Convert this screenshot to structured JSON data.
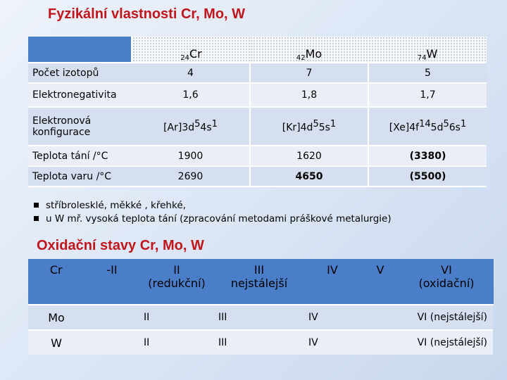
{
  "title": "Fyzikální vlastnosti Cr, Mo, W",
  "elements": [
    {
      "z": "24",
      "sym": "Cr"
    },
    {
      "z": "42",
      "sym": "Mo"
    },
    {
      "z": "74",
      "sym": "W"
    }
  ],
  "rows": {
    "izotopy": {
      "label": "Počet izotopů",
      "v": [
        "4",
        "7",
        "5"
      ]
    },
    "elneg": {
      "label": "Elektronegativita",
      "v": [
        "1,6",
        "1,8",
        "1,7"
      ]
    },
    "konf": {
      "label_1": "Elektronová",
      "label_2": "konfigurace",
      "cr": {
        "core": "[Ar]3d",
        "e1": "5",
        "mid": "4s",
        "e2": "1"
      },
      "mo": {
        "core": "[Kr]4d",
        "e1": "5",
        "mid": "5s",
        "e2": "1"
      },
      "w": {
        "core": "[Xe]4f",
        "e1": "14",
        "mid": "5d",
        "e2": "5",
        "mid2": "6s",
        "e3": "1"
      }
    },
    "tani": {
      "label": "Teplota tání  /°C",
      "v": [
        "1900",
        "1620",
        "(3380)"
      ]
    },
    "varu": {
      "label": "Teplota varu /°C",
      "v": [
        "2690",
        "4650",
        "(5500)"
      ]
    }
  },
  "bullets": [
    "stříbrolesklé, měkké , křehké,",
    "u W mř.  vysoká teplota tání (zpracování metodami práškové metalurgie)"
  ],
  "subtitle": "Oxidační stavy Cr, Mo, W",
  "ox": {
    "header": {
      "el": "Cr",
      "c1": "-II",
      "c2": "II",
      "c2b": "(redukční)",
      "c3": "III",
      "c3b": "nejstálejší",
      "c4": "IV",
      "c5": "V",
      "c6": "VI",
      "c6b": "(oxidační)"
    },
    "mo": {
      "el": "Mo",
      "c1": "II",
      "c2": "III",
      "c3": "IV",
      "c4": "VI (nejstálejší)"
    },
    "w": {
      "el": "W",
      "c1": "II",
      "c2": "III",
      "c3": "IV",
      "c4": "VI (nejstálejší)"
    }
  }
}
